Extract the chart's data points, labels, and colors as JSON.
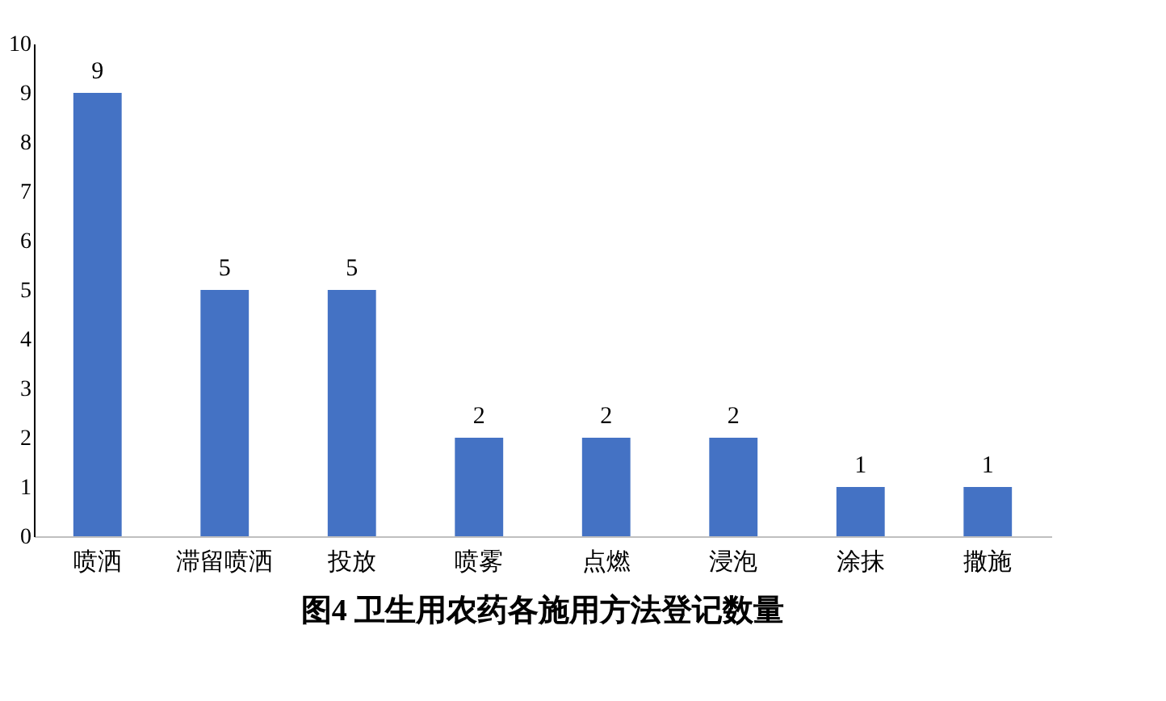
{
  "chart_data": {
    "type": "bar",
    "title": "图4 卫生用农药各施用方法登记数量",
    "categories": [
      "喷洒",
      "滞留喷洒",
      "投放",
      "喷雾",
      "点燃",
      "浸泡",
      "涂抹",
      "撒施"
    ],
    "values": [
      9,
      5,
      5,
      2,
      2,
      2,
      1,
      1
    ],
    "color": "#4472c4",
    "ylim": [
      0,
      10
    ],
    "yticks": [
      0,
      1,
      2,
      3,
      4,
      5,
      6,
      7,
      8,
      9,
      10
    ],
    "grid": false,
    "data_labels": true
  }
}
